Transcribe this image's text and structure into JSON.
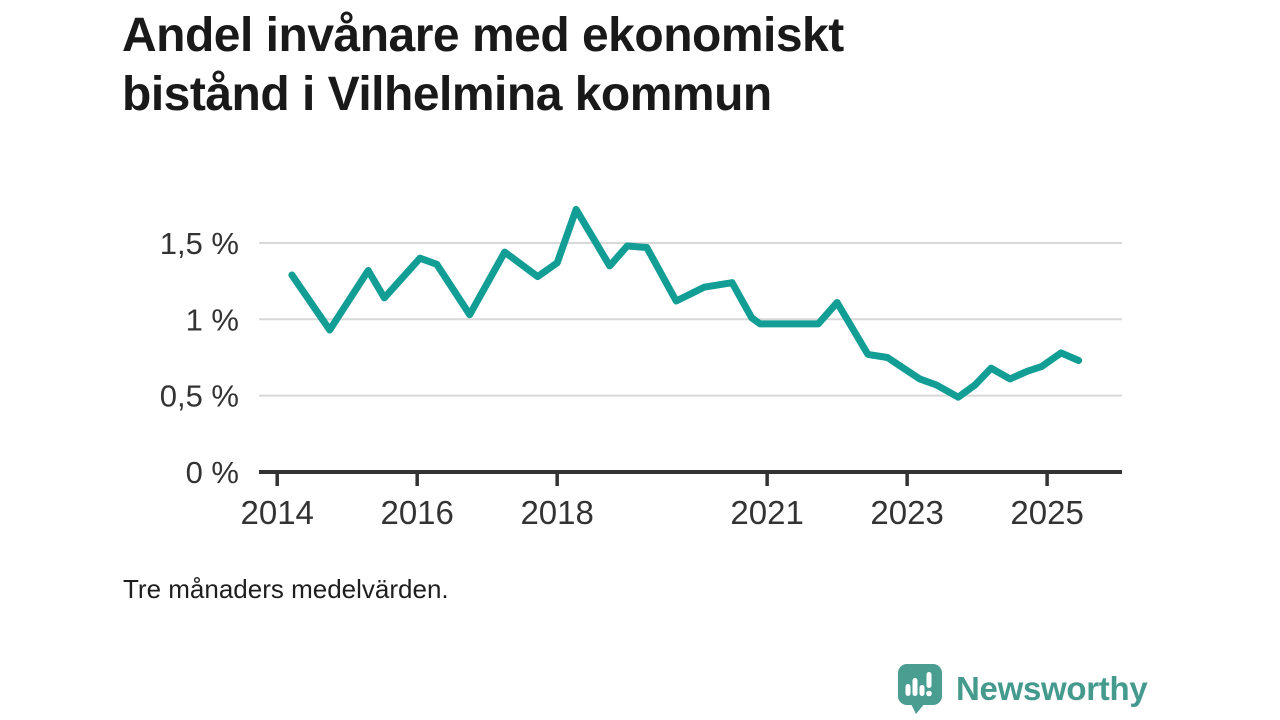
{
  "title": {
    "line1": "Andel invånare med ekonomiskt",
    "line2": "bistånd i Vilhelmina kommun"
  },
  "footnote": "Tre månaders medelvärden.",
  "branding": {
    "name": "Newsworthy"
  },
  "colors": {
    "line": "#129e94",
    "grid": "#d8d8d8",
    "axis": "#333333",
    "tick_label": "#333333",
    "title": "#191919",
    "brand_mark": "#4a9d91",
    "brand_text": "#459a8e"
  },
  "chart_data": {
    "type": "line",
    "title": "Andel invånare med ekonomiskt bistånd i Vilhelmina kommun",
    "subtitle": "Tre månaders medelvärden.",
    "unit": "%",
    "grid": "horizontal-only",
    "legend": "none",
    "xlim": [
      2013.74,
      2026.07
    ],
    "ylim": [
      0,
      1.86
    ],
    "x_ticks": [
      {
        "label": "2014",
        "year": 2014
      },
      {
        "label": "2016",
        "year": 2016
      },
      {
        "label": "2018",
        "year": 2018
      },
      {
        "label": "2021",
        "year": 2021
      },
      {
        "label": "2023",
        "year": 2023
      },
      {
        "label": "2025",
        "year": 2025
      }
    ],
    "y_ticks": [
      {
        "label": "0 %",
        "value": 0
      },
      {
        "label": "0,5 %",
        "value": 0.5
      },
      {
        "label": "1 %",
        "value": 1
      },
      {
        "label": "1,5 %",
        "value": 1.5
      }
    ],
    "series": [
      {
        "name": "Andel invånare med ekonomiskt bistånd",
        "points": [
          [
            2014.21,
            1.29
          ],
          [
            2014.75,
            0.93
          ],
          [
            2015.3,
            1.32
          ],
          [
            2015.53,
            1.14
          ],
          [
            2016.04,
            1.4
          ],
          [
            2016.28,
            1.36
          ],
          [
            2016.75,
            1.03
          ],
          [
            2017.25,
            1.44
          ],
          [
            2017.72,
            1.28
          ],
          [
            2018.0,
            1.37
          ],
          [
            2018.27,
            1.72
          ],
          [
            2018.75,
            1.35
          ],
          [
            2019.0,
            1.48
          ],
          [
            2019.28,
            1.47
          ],
          [
            2019.7,
            1.12
          ],
          [
            2020.1,
            1.21
          ],
          [
            2020.5,
            1.24
          ],
          [
            2020.78,
            1.01
          ],
          [
            2020.9,
            0.97
          ],
          [
            2021.3,
            0.97
          ],
          [
            2021.73,
            0.97
          ],
          [
            2022.0,
            1.11
          ],
          [
            2022.44,
            0.77
          ],
          [
            2022.72,
            0.75
          ],
          [
            2023.18,
            0.61
          ],
          [
            2023.42,
            0.57
          ],
          [
            2023.73,
            0.49
          ],
          [
            2023.97,
            0.57
          ],
          [
            2024.2,
            0.68
          ],
          [
            2024.47,
            0.61
          ],
          [
            2024.72,
            0.66
          ],
          [
            2024.92,
            0.69
          ],
          [
            2025.2,
            0.78
          ],
          [
            2025.45,
            0.73
          ]
        ]
      }
    ]
  }
}
